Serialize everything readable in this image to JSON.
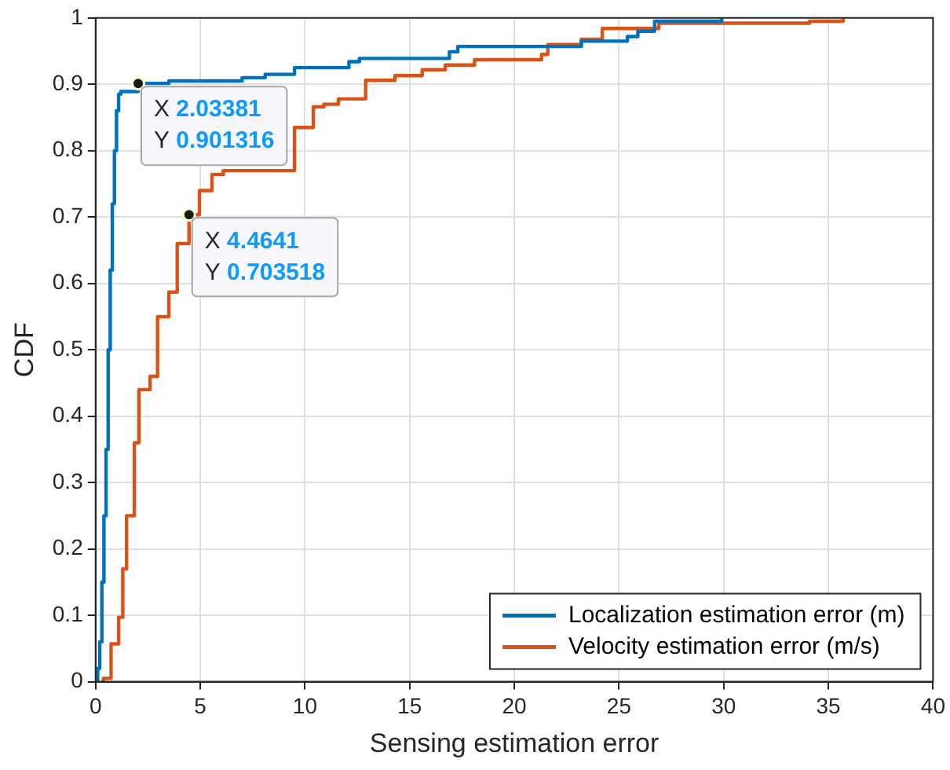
{
  "chart_data": {
    "type": "step",
    "xlabel": "Sensing estimation error",
    "ylabel": "CDF",
    "xlim": [
      0,
      40
    ],
    "xticks": [
      0,
      5,
      10,
      15,
      20,
      25,
      30,
      35,
      40
    ],
    "ylim": [
      0,
      1
    ],
    "yticks": [
      0,
      0.1,
      0.2,
      0.3,
      0.4,
      0.5,
      0.6,
      0.7,
      0.8,
      0.9,
      1
    ],
    "grid": true,
    "legend": "bottom right",
    "marker": "none",
    "line_style": "solid",
    "series": [
      {
        "name": "Localization estimation error (m)",
        "color": "#0072bd",
        "x": [
          0,
          0.1,
          0.2,
          0.3,
          0.4,
          0.5,
          0.6,
          0.7,
          0.8,
          0.9,
          1.0,
          1.1,
          1.2,
          2.03381,
          3.5,
          7.0,
          8.1,
          9.5,
          12.1,
          12.6,
          16.9,
          17.3,
          23.2,
          25.4,
          25.9,
          26.7,
          29.9
        ],
        "values": [
          0,
          0.02,
          0.06,
          0.15,
          0.25,
          0.35,
          0.5,
          0.62,
          0.72,
          0.8,
          0.86,
          0.885,
          0.889,
          0.901316,
          0.905,
          0.91,
          0.915,
          0.925,
          0.934,
          0.939,
          0.949,
          0.957,
          0.965,
          0.972,
          0.98,
          0.995,
          1
        ]
      },
      {
        "name": "Velocity estimation error (m/s)",
        "color": "#d95319",
        "x": [
          0.3,
          0.37,
          0.74,
          1.1,
          1.3,
          1.48,
          1.85,
          2.07,
          2.6,
          2.96,
          3.5,
          3.9,
          4.4641,
          4.96,
          5.56,
          6.1,
          9.5,
          10.4,
          10.9,
          11.6,
          12.9,
          14.3,
          15.6,
          16.7,
          18.1,
          21.3,
          21.6,
          23.2,
          24.2,
          26.9,
          34.1,
          35.7
        ],
        "values": [
          0,
          0.005,
          0.057,
          0.097,
          0.17,
          0.25,
          0.36,
          0.44,
          0.46,
          0.55,
          0.587,
          0.66,
          0.703518,
          0.74,
          0.764,
          0.77,
          0.835,
          0.866,
          0.87,
          0.878,
          0.906,
          0.913,
          0.922,
          0.929,
          0.937,
          0.945,
          0.96,
          0.968,
          0.984,
          0.992,
          0.995,
          1
        ]
      }
    ],
    "annotations": [
      {
        "text": "X 2.03381\nY 0.901316",
        "x": 2.03381,
        "y": 0.901316
      },
      {
        "text": "X 4.4641\nY 0.703518",
        "x": 4.4641,
        "y": 0.703518
      }
    ]
  }
}
